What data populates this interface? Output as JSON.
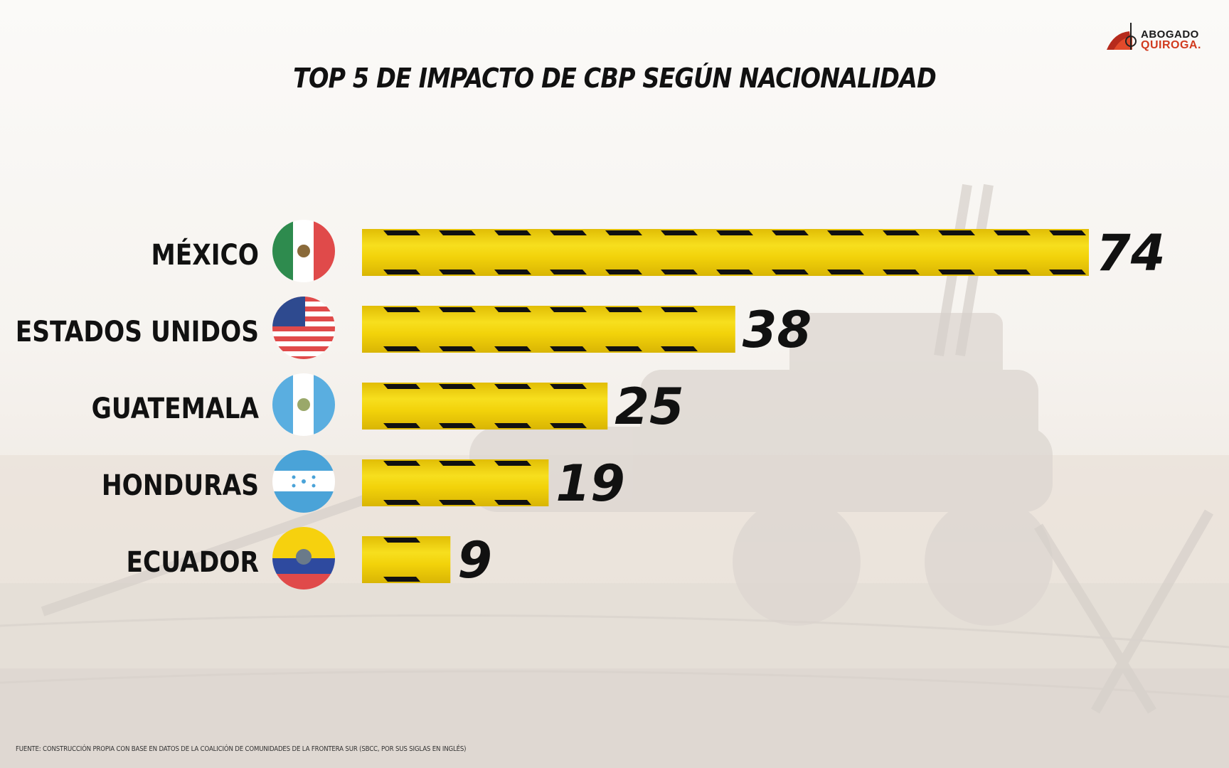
{
  "chart_data": {
    "type": "bar",
    "orientation": "horizontal",
    "title": "TOP 5 DE IMPACTO DE CBP SEGÚN NACIONALIDAD",
    "categories": [
      "MÉXICO",
      "ESTADOS UNIDOS",
      "GUATEMALA",
      "HONDURAS",
      "ECUADOR"
    ],
    "values": [
      74,
      38,
      25,
      19,
      9
    ],
    "value_labels": [
      "74",
      "38",
      "25",
      "19",
      "9"
    ],
    "xlim": [
      0,
      74
    ],
    "grid": false,
    "legend": "none",
    "flag_icons": [
      "mexico-flag-icon",
      "usa-flag-icon",
      "guatemala-flag-icon",
      "honduras-flag-icon",
      "ecuador-flag-icon"
    ],
    "bar_color": "#f2d20a",
    "stripe_color": "#111111"
  },
  "logo": {
    "line1": "ABOGADO",
    "line2": "QUIROGA."
  },
  "source": "FUENTE: CONSTRUCCIÓN PROPIA CON BASE EN DATOS DE LA COALICIÓN DE COMUNIDADES DE LA FRONTERA SUR (SBCC, POR SUS SIGLAS EN INGLÉS)"
}
